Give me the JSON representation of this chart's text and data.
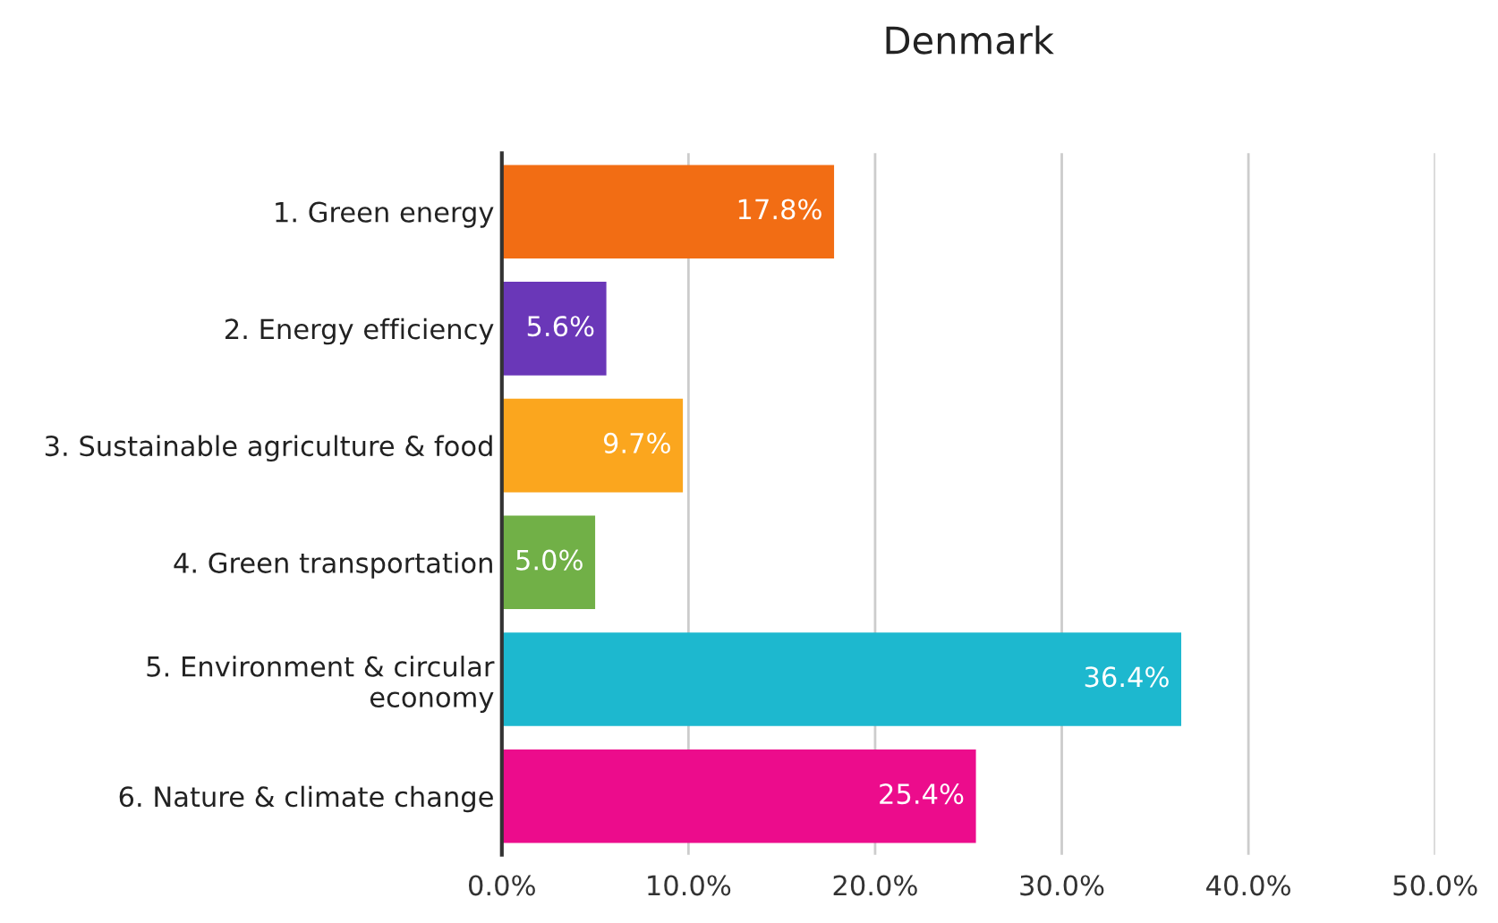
{
  "chart_data": {
    "type": "bar",
    "orientation": "horizontal",
    "title": "Denmark",
    "categories": [
      "1. Green energy",
      "2. Energy efficiency",
      "3. Sustainable agriculture & food",
      "4. Green transportation",
      "5. Environment & circular\neconomy",
      "6. Nature & climate change"
    ],
    "values": [
      17.8,
      5.6,
      9.7,
      5.0,
      36.4,
      25.4
    ],
    "colors": [
      "#f26d14",
      "#6a37b8",
      "#fba61e",
      "#71b047",
      "#1db8cf",
      "#ec0c8c"
    ],
    "value_labels": [
      "17.8%",
      "5.6%",
      "9.7%",
      "5.0%",
      "36.4%",
      "25.4%"
    ],
    "xlim": [
      0,
      50
    ],
    "xticks": [
      {
        "value": 0,
        "label": "0.0%"
      },
      {
        "value": 10,
        "label": "10.0%"
      },
      {
        "value": 20,
        "label": "20.0%"
      },
      {
        "value": 30,
        "label": "30.0%"
      },
      {
        "value": 40,
        "label": "40.0%"
      },
      {
        "value": 50,
        "label": "50.0%"
      }
    ],
    "grid": "x",
    "legend": false
  }
}
